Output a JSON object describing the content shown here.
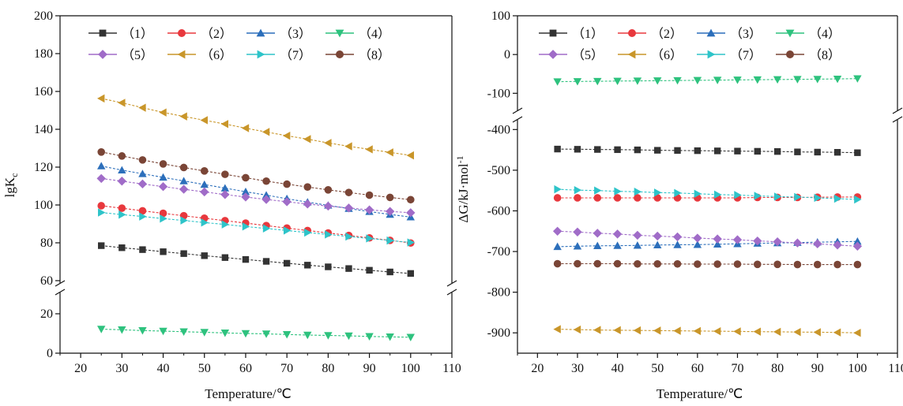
{
  "chart_data": [
    {
      "type": "line",
      "xlabel": "Temperature/℃",
      "ylabel_main": "lgK",
      "ylabel_sub": "c",
      "xlim": [
        15,
        110
      ],
      "xticks": [
        "20",
        "30",
        "40",
        "50",
        "60",
        "70",
        "80",
        "90",
        "100",
        "110"
      ],
      "y_axis_break": true,
      "ylim_lower": [
        0,
        30
      ],
      "ylim_upper": [
        60,
        200
      ],
      "yticks_lower": [
        "0",
        "20"
      ],
      "yticks_upper": [
        "60",
        "80",
        "100",
        "120",
        "140",
        "160",
        "180",
        "200"
      ],
      "legend_position": "top",
      "x": [
        25,
        30,
        35,
        40,
        45,
        50,
        55,
        60,
        65,
        70,
        75,
        80,
        85,
        90,
        95,
        100
      ],
      "series": [
        {
          "name": "（1）",
          "color": "#333333",
          "marker": "square",
          "values": [
            78.5,
            77.4,
            76.4,
            75.3,
            74.3,
            73.2,
            72.2,
            71.2,
            70.2,
            69.2,
            68.2,
            67.3,
            66.4,
            65.5,
            64.6,
            63.8
          ]
        },
        {
          "name": "（2）",
          "color": "#e8383d",
          "marker": "circle",
          "values": [
            99.6,
            98.3,
            96.9,
            95.6,
            94.3,
            93.0,
            91.7,
            90.4,
            89.1,
            87.8,
            86.5,
            85.2,
            83.9,
            82.6,
            81.3,
            79.9
          ]
        },
        {
          "name": "（3）",
          "color": "#2c6fbb",
          "marker": "triangle-up",
          "values": [
            120.6,
            118.4,
            116.5,
            114.6,
            112.7,
            110.8,
            108.9,
            107.0,
            105.2,
            103.3,
            101.5,
            99.8,
            98.1,
            96.5,
            95.0,
            93.6
          ]
        },
        {
          "name": "（4）",
          "color": "#2ec27e",
          "marker": "triangle-down",
          "values": [
            12.2,
            11.9,
            11.5,
            11.2,
            10.9,
            10.6,
            10.3,
            10.0,
            9.8,
            9.5,
            9.2,
            9.0,
            8.8,
            8.5,
            8.3,
            8.1
          ]
        },
        {
          "name": "（5）",
          "color": "#a06cc8",
          "marker": "diamond",
          "values": [
            114.0,
            112.6,
            111.1,
            109.7,
            108.3,
            106.9,
            105.5,
            104.2,
            102.9,
            101.7,
            100.5,
            99.4,
            98.4,
            97.4,
            96.6,
            95.9
          ]
        },
        {
          "name": "（6）",
          "color": "#c9962a",
          "marker": "triangle-left",
          "values": [
            156.3,
            154.0,
            151.4,
            148.9,
            146.8,
            144.8,
            142.8,
            140.6,
            138.6,
            136.6,
            134.8,
            132.8,
            131.0,
            129.4,
            127.8,
            126.2
          ]
        },
        {
          "name": "（7）",
          "color": "#2ec4c9",
          "marker": "triangle-right",
          "values": [
            96.0,
            94.9,
            93.9,
            92.8,
            91.8,
            90.7,
            89.7,
            88.6,
            87.6,
            86.5,
            85.4,
            84.4,
            83.3,
            82.3,
            81.2,
            80.2
          ]
        },
        {
          "name": "（8）",
          "color": "#7a4536",
          "marker": "circle",
          "values": [
            128.0,
            125.9,
            123.8,
            121.7,
            119.8,
            118.0,
            116.2,
            114.4,
            112.6,
            111.0,
            109.5,
            108.0,
            106.6,
            105.2,
            104.0,
            102.8
          ]
        }
      ]
    },
    {
      "type": "line",
      "xlabel": "Temperature/℃",
      "ylabel_main": "ΔG/kJ·mol",
      "ylabel_sup": "-1",
      "xlim": [
        15,
        110
      ],
      "xticks": [
        "20",
        "30",
        "40",
        "50",
        "60",
        "70",
        "80",
        "90",
        "100",
        "110"
      ],
      "y_axis_break": true,
      "ylim_lower": [
        -950,
        -380
      ],
      "ylim_upper": [
        -140,
        100
      ],
      "yticks_lower": [
        "-900",
        "-800",
        "-700",
        "-600",
        "-500",
        "-400"
      ],
      "yticks_upper": [
        "-100",
        "0",
        "100"
      ],
      "legend_position": "top",
      "x": [
        25,
        30,
        35,
        40,
        45,
        50,
        55,
        60,
        65,
        70,
        75,
        80,
        85,
        90,
        95,
        100
      ],
      "series": [
        {
          "name": "（1）",
          "color": "#333333",
          "marker": "square",
          "values": [
            -448,
            -448.5,
            -449,
            -449.5,
            -450,
            -451,
            -451.5,
            -452,
            -452.5,
            -453,
            -453.5,
            -454,
            -455,
            -455.5,
            -456,
            -457
          ]
        },
        {
          "name": "（2）",
          "color": "#e8383d",
          "marker": "circle",
          "values": [
            -568,
            -568,
            -568,
            -568,
            -568,
            -568,
            -568,
            -568,
            -568,
            -568,
            -567,
            -567,
            -567,
            -566.5,
            -566,
            -566
          ]
        },
        {
          "name": "（3）",
          "color": "#2c6fbb",
          "marker": "triangle-up",
          "values": [
            -688,
            -687,
            -686,
            -685.5,
            -685,
            -684,
            -683.5,
            -683,
            -682,
            -681,
            -680,
            -679,
            -678,
            -677,
            -676,
            -675
          ]
        },
        {
          "name": "（4）",
          "color": "#2ec27e",
          "marker": "triangle-down",
          "values": [
            -70,
            -69.5,
            -69,
            -68.5,
            -68,
            -67.5,
            -67,
            -66.5,
            -66,
            -65.5,
            -65,
            -64.5,
            -64,
            -63.5,
            -63,
            -62
          ]
        },
        {
          "name": "（5）",
          "color": "#a06cc8",
          "marker": "diamond",
          "values": [
            -650,
            -652,
            -655,
            -657,
            -660,
            -662,
            -664,
            -667,
            -669,
            -671,
            -674,
            -676,
            -679,
            -681,
            -684,
            -687
          ]
        },
        {
          "name": "（6）",
          "color": "#c9962a",
          "marker": "triangle-left",
          "values": [
            -891,
            -892,
            -893,
            -893.5,
            -894,
            -894.5,
            -895,
            -895.5,
            -896,
            -896.5,
            -897,
            -897.5,
            -898,
            -898.5,
            -899,
            -900
          ]
        },
        {
          "name": "（7）",
          "color": "#2ec4c9",
          "marker": "triangle-right",
          "values": [
            -547,
            -549,
            -550,
            -552,
            -553,
            -555,
            -556,
            -558,
            -560,
            -561,
            -563,
            -565,
            -566,
            -568,
            -570,
            -572
          ]
        },
        {
          "name": "（8）",
          "color": "#7a4536",
          "marker": "circle",
          "values": [
            -730,
            -730,
            -730,
            -730,
            -730.5,
            -730.5,
            -730.5,
            -731,
            -731,
            -731,
            -731.5,
            -731.5,
            -732,
            -732,
            -732,
            -732
          ]
        }
      ]
    }
  ]
}
